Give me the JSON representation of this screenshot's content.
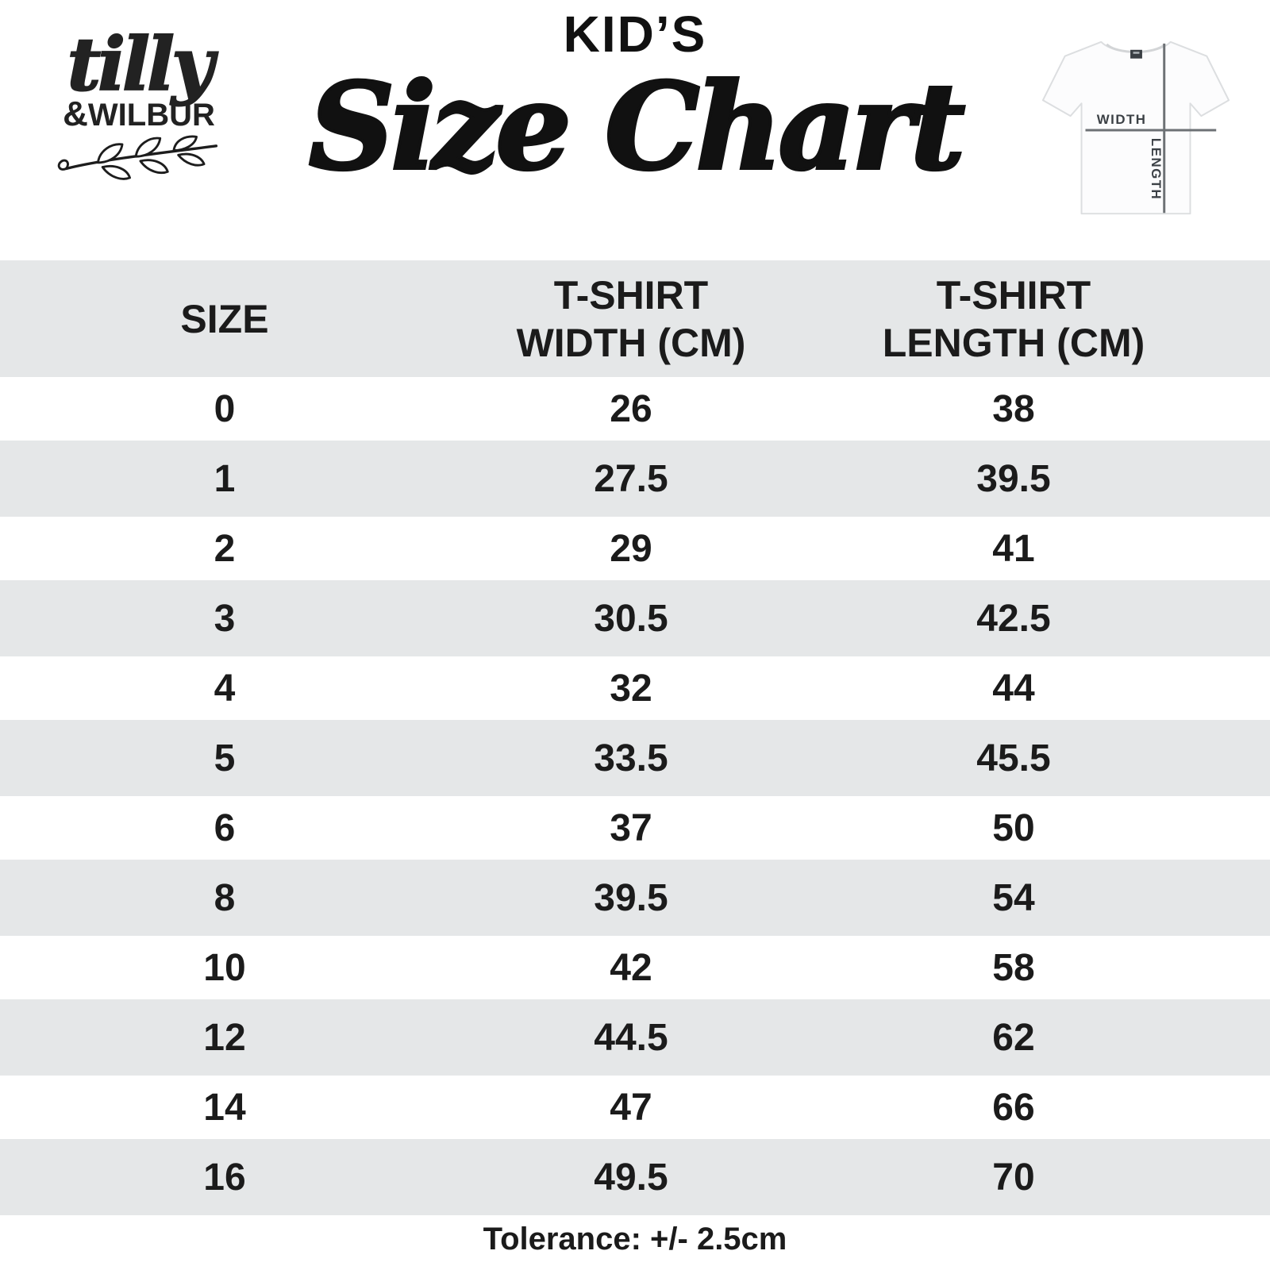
{
  "brand": {
    "script_name": "tilly",
    "amp": "&",
    "caps_name": "WILBUR"
  },
  "title": {
    "kicker": "KID’S",
    "main": "Size Chart"
  },
  "tee_diagram": {
    "width_label": "WIDTH",
    "length_label": "LENGTH"
  },
  "table": {
    "header": [
      {
        "line1": "SIZE",
        "line2": ""
      },
      {
        "line1": "T-SHIRT",
        "line2": "WIDTH (CM)"
      },
      {
        "line1": "T-SHIRT",
        "line2": "LENGTH (CM)"
      }
    ],
    "rows": [
      {
        "size": "0",
        "width": "26",
        "length": "38"
      },
      {
        "size": "1",
        "width": "27.5",
        "length": "39.5"
      },
      {
        "size": "2",
        "width": "29",
        "length": "41"
      },
      {
        "size": "3",
        "width": "30.5",
        "length": "42.5"
      },
      {
        "size": "4",
        "width": "32",
        "length": "44"
      },
      {
        "size": "5",
        "width": "33.5",
        "length": "45.5"
      },
      {
        "size": "6",
        "width": "37",
        "length": "50"
      },
      {
        "size": "8",
        "width": "39.5",
        "length": "54"
      },
      {
        "size": "10",
        "width": "42",
        "length": "58"
      },
      {
        "size": "12",
        "width": "44.5",
        "length": "62"
      },
      {
        "size": "14",
        "width": "47",
        "length": "66"
      },
      {
        "size": "16",
        "width": "49.5",
        "length": "70"
      }
    ]
  },
  "footer": {
    "tolerance": "Tolerance: +/- 2.5cm"
  },
  "colors": {
    "row_shade": "#e5e7e8",
    "text": "#1b1b1b",
    "line_gray": "#6d7175"
  },
  "chart_data": {
    "type": "table",
    "title": "KID’S Size Chart",
    "columns": [
      "SIZE",
      "T-SHIRT WIDTH (CM)",
      "T-SHIRT LENGTH (CM)"
    ],
    "rows": [
      [
        0,
        26,
        38
      ],
      [
        1,
        27.5,
        39.5
      ],
      [
        2,
        29,
        41
      ],
      [
        3,
        30.5,
        42.5
      ],
      [
        4,
        32,
        44
      ],
      [
        5,
        33.5,
        45.5
      ],
      [
        6,
        37,
        50
      ],
      [
        8,
        39.5,
        54
      ],
      [
        10,
        42,
        58
      ],
      [
        12,
        44.5,
        62
      ],
      [
        14,
        47,
        66
      ],
      [
        16,
        49.5,
        70
      ]
    ],
    "footnote": "Tolerance: +/- 2.5cm"
  }
}
